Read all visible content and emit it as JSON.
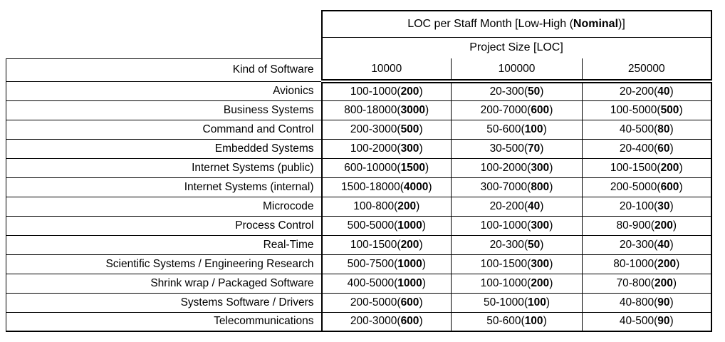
{
  "colors": {
    "border": "#000000",
    "text": "#000000",
    "background": "#ffffff"
  },
  "table": {
    "title": {
      "prefix": "LOC per Staff Month [Low-High (",
      "bold": "Nominal",
      "suffix": ")]"
    },
    "subtitle": "Project Size [LOC]",
    "corner_label": "Kind of Software",
    "size_columns": [
      "10000",
      "100000",
      "250000"
    ],
    "rows": [
      {
        "kind": "Avionics",
        "values": [
          {
            "range": "100-1000",
            "nominal": "200"
          },
          {
            "range": "20-300",
            "nominal": "50"
          },
          {
            "range": "20-200",
            "nominal": "40"
          }
        ]
      },
      {
        "kind": "Business Systems",
        "values": [
          {
            "range": "800-18000",
            "nominal": "3000"
          },
          {
            "range": "200-7000",
            "nominal": "600"
          },
          {
            "range": "100-5000",
            "nominal": "500"
          }
        ]
      },
      {
        "kind": "Command and Control",
        "values": [
          {
            "range": "200-3000",
            "nominal": "500"
          },
          {
            "range": "50-600",
            "nominal": "100"
          },
          {
            "range": "40-500",
            "nominal": "80"
          }
        ]
      },
      {
        "kind": "Embedded Systems",
        "values": [
          {
            "range": "100-2000",
            "nominal": "300"
          },
          {
            "range": "30-500",
            "nominal": "70"
          },
          {
            "range": "20-400",
            "nominal": "60"
          }
        ]
      },
      {
        "kind": "Internet Systems (public)",
        "values": [
          {
            "range": "600-10000",
            "nominal": "1500"
          },
          {
            "range": "100-2000",
            "nominal": "300"
          },
          {
            "range": "100-1500",
            "nominal": "200"
          }
        ]
      },
      {
        "kind": "Internet Systems (internal)",
        "values": [
          {
            "range": "1500-18000",
            "nominal": "4000"
          },
          {
            "range": "300-7000",
            "nominal": "800"
          },
          {
            "range": "200-5000",
            "nominal": "600"
          }
        ]
      },
      {
        "kind": "Microcode",
        "values": [
          {
            "range": "100-800",
            "nominal": "200"
          },
          {
            "range": "20-200",
            "nominal": "40"
          },
          {
            "range": "20-100",
            "nominal": "30"
          }
        ]
      },
      {
        "kind": "Process Control",
        "values": [
          {
            "range": "500-5000",
            "nominal": "1000"
          },
          {
            "range": "100-1000",
            "nominal": "300"
          },
          {
            "range": "80-900",
            "nominal": "200"
          }
        ]
      },
      {
        "kind": "Real-Time",
        "values": [
          {
            "range": "100-1500",
            "nominal": "200"
          },
          {
            "range": "20-300",
            "nominal": "50"
          },
          {
            "range": "20-300",
            "nominal": "40"
          }
        ]
      },
      {
        "kind": "Scientific Systems / Engineering Research",
        "values": [
          {
            "range": "500-7500",
            "nominal": "1000"
          },
          {
            "range": "100-1500",
            "nominal": "300"
          },
          {
            "range": "80-1000",
            "nominal": "200"
          }
        ]
      },
      {
        "kind": "Shrink wrap / Packaged Software",
        "values": [
          {
            "range": "400-5000",
            "nominal": "1000"
          },
          {
            "range": "100-1000",
            "nominal": "200"
          },
          {
            "range": "70-800",
            "nominal": "200"
          }
        ]
      },
      {
        "kind": "Systems Software / Drivers",
        "values": [
          {
            "range": "200-5000",
            "nominal": "600"
          },
          {
            "range": "50-1000",
            "nominal": "100"
          },
          {
            "range": "40-800",
            "nominal": "90"
          }
        ]
      },
      {
        "kind": "Telecommunications",
        "values": [
          {
            "range": "200-3000",
            "nominal": "600"
          },
          {
            "range": "50-600",
            "nominal": "100"
          },
          {
            "range": "40-500",
            "nominal": "90"
          }
        ]
      }
    ]
  }
}
